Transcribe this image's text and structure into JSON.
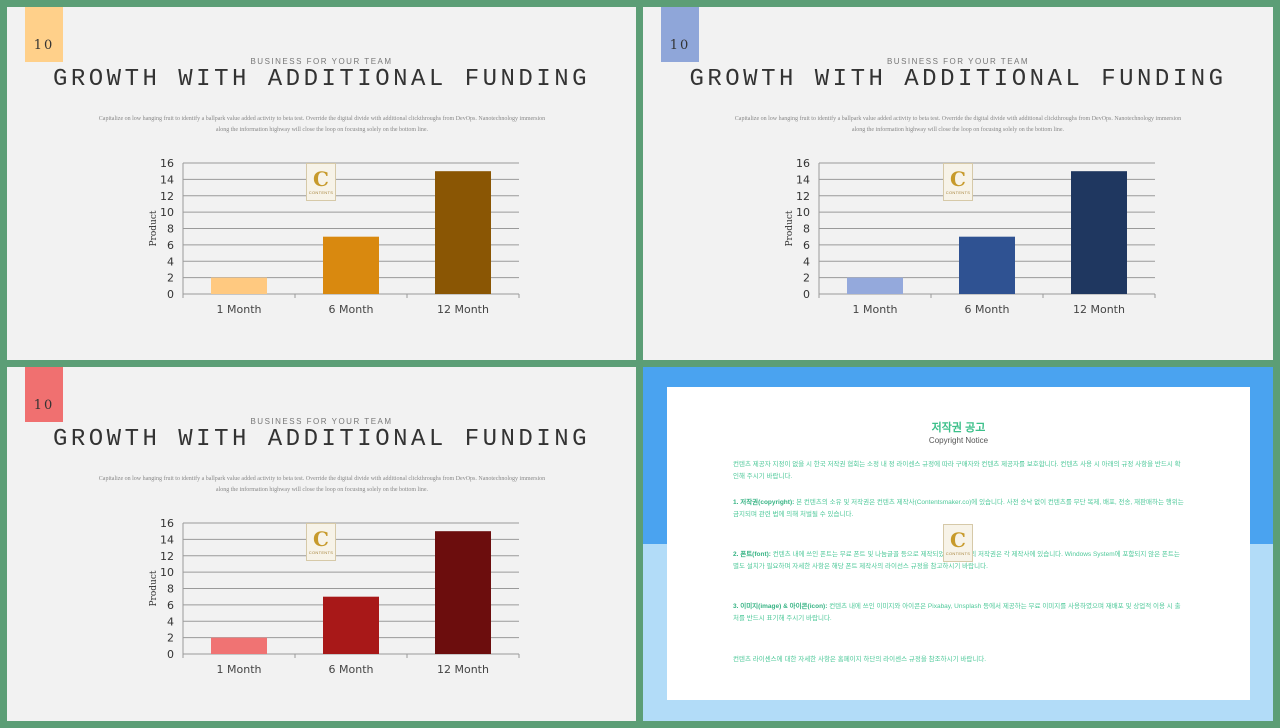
{
  "slides": [
    {
      "page_number": "10",
      "badge_color": "#ffd08a",
      "subtitle": "BUSINESS FOR YOUR TEAM",
      "title": "GROWTH WITH ADDITIONAL FUNDING",
      "description": "Capitalize on low hanging fruit to identify a ballpark value added activity to beta test. Override the digital divide with additional clickthroughs from DevOps. Nanotechnology immersion along the information highway will close the loop on focusing solely on the bottom line.",
      "bar_colors": [
        "#ffc980",
        "#d9890f",
        "#8a5604"
      ]
    },
    {
      "page_number": "10",
      "badge_color": "#8fa6d9",
      "subtitle": "BUSINESS FOR YOUR TEAM",
      "title": "GROWTH WITH ADDITIONAL FUNDING",
      "description": "Capitalize on low hanging fruit to identify a ballpark value added activity to beta test. Override the digital divide with additional clickthroughs from DevOps. Nanotechnology immersion along the information highway will close the loop on focusing solely on the bottom line.",
      "bar_colors": [
        "#94a9dc",
        "#2f5292",
        "#1f3760"
      ]
    },
    {
      "page_number": "10",
      "badge_color": "#f07070",
      "subtitle": "BUSINESS FOR YOUR TEAM",
      "title": "GROWTH WITH ADDITIONAL FUNDING",
      "description": "Capitalize on low hanging fruit to identify a ballpark value added activity to beta test. Override the digital divide with additional clickthroughs from DevOps. Nanotechnology immersion along the information highway will close the loop on focusing solely on the bottom line.",
      "bar_colors": [
        "#f07373",
        "#a81818",
        "#6c0d0d"
      ]
    }
  ],
  "chart_data": [
    {
      "type": "bar",
      "categories": [
        "1 Month",
        "6 Month",
        "12 Month"
      ],
      "values": [
        2,
        7,
        15
      ],
      "ylabel": "Product",
      "ylim": [
        0,
        16
      ],
      "yticks": [
        0,
        2,
        4,
        6,
        8,
        10,
        12,
        14,
        16
      ],
      "grid": true
    },
    {
      "type": "bar",
      "categories": [
        "1 Month",
        "6 Month",
        "12 Month"
      ],
      "values": [
        2,
        7,
        15
      ],
      "ylabel": "Product",
      "ylim": [
        0,
        16
      ],
      "yticks": [
        0,
        2,
        4,
        6,
        8,
        10,
        12,
        14,
        16
      ],
      "grid": true
    },
    {
      "type": "bar",
      "categories": [
        "1 Month",
        "6 Month",
        "12 Month"
      ],
      "values": [
        2,
        7,
        15
      ],
      "ylabel": "Product",
      "ylim": [
        0,
        16
      ],
      "yticks": [
        0,
        2,
        4,
        6,
        8,
        10,
        12,
        14,
        16
      ],
      "grid": true
    }
  ],
  "logo": {
    "letter": "C",
    "text": "CONTENTS"
  },
  "notice": {
    "title": "저작권 공고",
    "subtitle": "Copyright Notice",
    "intro": "컨텐츠 제공자 지정이 없을 시 한국 저작권 협회는 소정 내 정 라이센스 규정에 따라 구매자와 컨텐츠 제공자를 보호합니다. 컨텐츠 사용 시 아래의 규정 사항을 반드시 확인해 주시기 바랍니다.",
    "p1_label": "1. 저작권(copyright):",
    "p1_text": " 본 컨텐츠의 소유 및 저작권은 컨텐츠 제작사(Contentsmaker.co)에 있습니다. 사전 승낙 없이 컨텐츠를 무단 복제, 배포, 전송, 재판매하는 행위는 금지되며 관련 법에 의해 처벌될 수 있습니다.",
    "p2_label": "2. 폰트(font):",
    "p2_text": " 컨텐츠 내에 쓰인 폰트는 무료 폰트 및 나눔글꼴 등으로 제작되었으며 폰트의 저작권은 각 제작사에 있습니다. Windows System에 포함되지 않은 폰트는 별도 설치가 필요하며 자세한 사항은 해당 폰트 제작사의 라이선스 규정을 참고하시기 바랍니다.",
    "p3_label": "3. 이미지(image) & 아이콘(icon):",
    "p3_text": " 컨텐츠 내에 쓰인 이미지와 아이콘은 Pixabay, Unsplash 등에서 제공하는 무료 이미지를 사용하였으며 재배포 및 상업적 이용 시 출처를 반드시 표기해 주시기 바랍니다.",
    "outro": "컨텐츠 라이센스에 대한 자세한 사항은 홈페이지 하단의 라이센스 규정을 참조하시기 바랍니다."
  }
}
